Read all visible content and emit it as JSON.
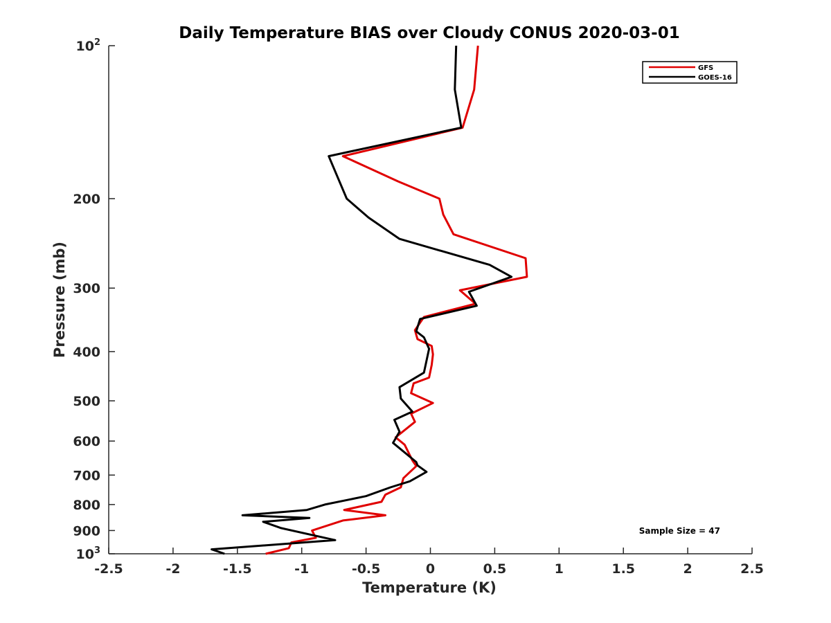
{
  "chart_data": {
    "type": "line",
    "title": "Daily Temperature BIAS over Cloudy CONUS 2020-03-01",
    "xlabel": "Temperature (K)",
    "ylabel": "Pressure (mb)",
    "xlim": [
      -2.5,
      2.5
    ],
    "ylim": [
      100,
      1000
    ],
    "y_scale": "log",
    "y_reversed": true,
    "x_ticks": [
      "-2.5",
      "-2",
      "-1.5",
      "-1",
      "-0.5",
      "0",
      "0.5",
      "1",
      "1.5",
      "2",
      "2.5"
    ],
    "x_tick_values": [
      -2.5,
      -2,
      -1.5,
      -1,
      -0.5,
      0,
      0.5,
      1,
      1.5,
      2,
      2.5
    ],
    "y_ticks": [
      {
        "value": 100,
        "base": "10",
        "exp": "2"
      },
      {
        "value": 200,
        "label": "200"
      },
      {
        "value": 300,
        "label": "300"
      },
      {
        "value": 400,
        "label": "400"
      },
      {
        "value": 500,
        "label": "500"
      },
      {
        "value": 600,
        "label": "600"
      },
      {
        "value": 700,
        "label": "700"
      },
      {
        "value": 800,
        "label": "800"
      },
      {
        "value": 900,
        "label": "900"
      },
      {
        "value": 1000,
        "base": "10",
        "exp": "3"
      }
    ],
    "grid": false,
    "legend_position": "top-right",
    "annotation": "Sample Size = 47",
    "series": [
      {
        "name": "GFS",
        "color": "#e00000",
        "points": [
          [
            0.37,
            100
          ],
          [
            0.34,
            122
          ],
          [
            0.25,
            145
          ],
          [
            -0.68,
            165
          ],
          [
            -0.25,
            185
          ],
          [
            0.07,
            200
          ],
          [
            0.1,
            215
          ],
          [
            0.18,
            235
          ],
          [
            0.74,
            262
          ],
          [
            0.75,
            285
          ],
          [
            0.23,
            303
          ],
          [
            0.35,
            322
          ],
          [
            -0.05,
            342
          ],
          [
            -0.12,
            363
          ],
          [
            -0.1,
            378
          ],
          [
            0.01,
            390
          ],
          [
            0.02,
            405
          ],
          [
            0.01,
            425
          ],
          [
            -0.01,
            450
          ],
          [
            -0.13,
            462
          ],
          [
            -0.15,
            483
          ],
          [
            0.02,
            505
          ],
          [
            -0.15,
            530
          ],
          [
            -0.12,
            550
          ],
          [
            -0.27,
            590
          ],
          [
            -0.2,
            610
          ],
          [
            -0.14,
            655
          ],
          [
            -0.11,
            672
          ],
          [
            -0.21,
            710
          ],
          [
            -0.23,
            740
          ],
          [
            -0.35,
            765
          ],
          [
            -0.38,
            790
          ],
          [
            -0.67,
            820
          ],
          [
            -0.35,
            840
          ],
          [
            -0.68,
            860
          ],
          [
            -0.92,
            900
          ],
          [
            -0.89,
            930
          ],
          [
            -1.08,
            950
          ],
          [
            -1.1,
            975
          ],
          [
            -1.28,
            1000
          ]
        ]
      },
      {
        "name": "GOES-16",
        "color": "#000000",
        "points": [
          [
            0.2,
            100
          ],
          [
            0.19,
            122
          ],
          [
            0.24,
            145
          ],
          [
            -0.79,
            165
          ],
          [
            -0.65,
            200
          ],
          [
            -0.48,
            218
          ],
          [
            -0.24,
            240
          ],
          [
            0.46,
            270
          ],
          [
            0.63,
            285
          ],
          [
            0.3,
            305
          ],
          [
            0.36,
            325
          ],
          [
            -0.08,
            345
          ],
          [
            -0.11,
            365
          ],
          [
            -0.05,
            375
          ],
          [
            -0.01,
            395
          ],
          [
            -0.05,
            440
          ],
          [
            -0.24,
            470
          ],
          [
            -0.23,
            495
          ],
          [
            -0.14,
            525
          ],
          [
            -0.28,
            545
          ],
          [
            -0.24,
            575
          ],
          [
            -0.29,
            605
          ],
          [
            -0.11,
            660
          ],
          [
            -0.1,
            670
          ],
          [
            -0.03,
            690
          ],
          [
            -0.16,
            720
          ],
          [
            -0.31,
            740
          ],
          [
            -0.5,
            770
          ],
          [
            -0.82,
            800
          ],
          [
            -0.96,
            820
          ],
          [
            -1.46,
            840
          ],
          [
            -0.94,
            850
          ],
          [
            -1.3,
            865
          ],
          [
            -1.16,
            890
          ],
          [
            -0.74,
            940
          ],
          [
            -1.7,
            980
          ],
          [
            -1.6,
            1000
          ]
        ]
      }
    ]
  }
}
